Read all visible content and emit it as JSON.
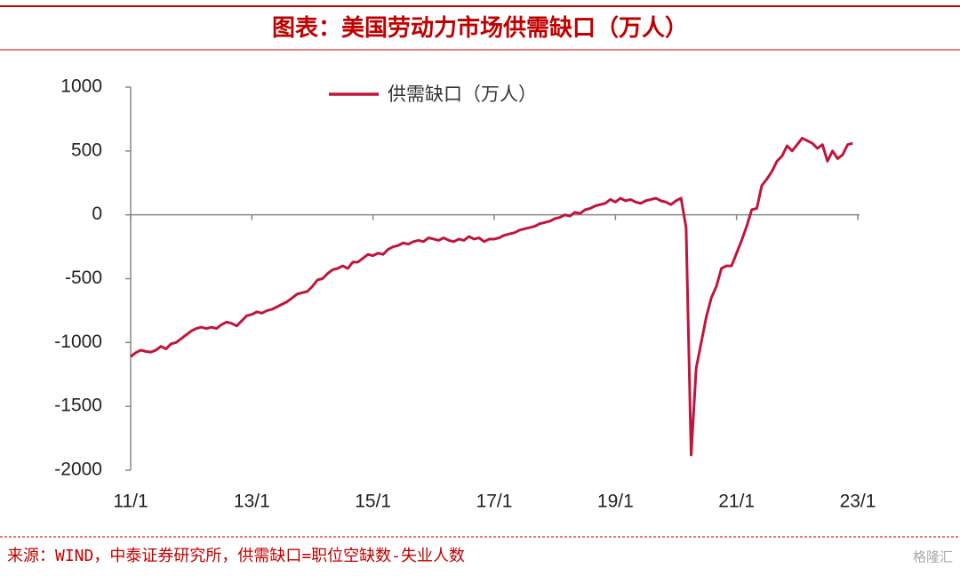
{
  "header": {
    "title": "图表：美国劳动力市场供需缺口（万人）"
  },
  "chart_data": {
    "type": "line",
    "categories": [
      "11/1",
      null,
      null,
      null,
      null,
      null,
      null,
      null,
      null,
      null,
      null,
      null,
      null,
      null,
      null,
      null,
      null,
      null,
      null,
      null,
      null,
      null,
      null,
      null,
      "13/1",
      null,
      null,
      null,
      null,
      null,
      null,
      null,
      null,
      null,
      null,
      null,
      null,
      null,
      null,
      null,
      null,
      null,
      null,
      null,
      null,
      null,
      null,
      null,
      "15/1",
      null,
      null,
      null,
      null,
      null,
      null,
      null,
      null,
      null,
      null,
      null,
      null,
      null,
      null,
      null,
      null,
      null,
      null,
      null,
      null,
      null,
      null,
      null,
      "17/1",
      null,
      null,
      null,
      null,
      null,
      null,
      null,
      null,
      null,
      null,
      null,
      null,
      null,
      null,
      null,
      null,
      null,
      null,
      null,
      null,
      null,
      null,
      null,
      "19/1",
      null,
      null,
      null,
      null,
      null,
      null,
      null,
      null,
      null,
      null,
      null,
      null,
      null,
      null,
      null,
      null,
      null,
      null,
      null,
      null,
      null,
      null,
      null,
      "21/1",
      null,
      null,
      null,
      null,
      null,
      null,
      null,
      null,
      null,
      null,
      null,
      null,
      null,
      null,
      null,
      null,
      null,
      null,
      null,
      null,
      null,
      null,
      null,
      "23/1"
    ],
    "series": [
      {
        "name": "供需缺口（万人）",
        "color": "#c0153a",
        "values": [
          -1110,
          -1080,
          -1060,
          -1070,
          -1075,
          -1060,
          -1030,
          -1050,
          -1010,
          -1000,
          -970,
          -940,
          -910,
          -890,
          -880,
          -890,
          -880,
          -890,
          -860,
          -840,
          -850,
          -870,
          -830,
          -790,
          -780,
          -760,
          -770,
          -750,
          -740,
          -720,
          -700,
          -680,
          -650,
          -620,
          -610,
          -600,
          -560,
          -510,
          -500,
          -460,
          -430,
          -420,
          -400,
          -420,
          -370,
          -370,
          -340,
          -310,
          -320,
          -300,
          -310,
          -270,
          -250,
          -240,
          -220,
          -230,
          -210,
          -200,
          -210,
          -180,
          -190,
          -200,
          -180,
          -200,
          -210,
          -190,
          -200,
          -170,
          -190,
          -180,
          -210,
          -190,
          -190,
          -180,
          -160,
          -150,
          -140,
          -120,
          -110,
          -100,
          -90,
          -70,
          -60,
          -50,
          -30,
          -20,
          0,
          -10,
          20,
          10,
          40,
          50,
          70,
          80,
          90,
          120,
          100,
          130,
          110,
          120,
          100,
          90,
          110,
          120,
          130,
          110,
          100,
          80,
          110,
          130,
          -100,
          -1880,
          -1200,
          -1000,
          -800,
          -650,
          -560,
          -420,
          -400,
          -400,
          -300,
          -200,
          -90,
          40,
          50,
          230,
          280,
          340,
          420,
          460,
          540,
          500,
          550,
          600,
          580,
          560,
          520,
          550,
          420,
          500,
          440,
          470,
          550,
          560,
          null
        ]
      }
    ],
    "ylim": [
      -2000,
      1000
    ],
    "yticks": [
      -2000,
      -1500,
      -1000,
      -500,
      0,
      500,
      1000
    ],
    "grid": false,
    "legend": "top"
  },
  "footer": {
    "source": "来源：WIND，中泰证券研究所，供需缺口=职位空缺数-失业人数",
    "watermark": "格隆汇"
  }
}
